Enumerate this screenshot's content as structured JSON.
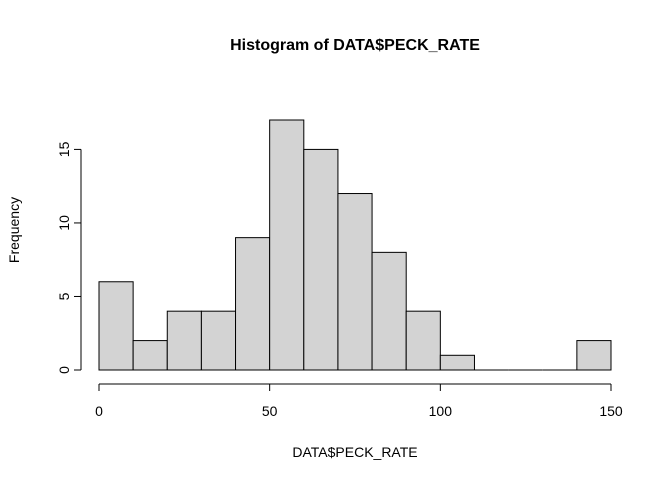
{
  "chart_data": {
    "type": "bar",
    "title": "Histogram of DATA$PECK_RATE",
    "xlabel": "DATA$PECK_RATE",
    "ylabel": "Frequency",
    "bins": [
      {
        "start": 0,
        "end": 10,
        "count": 6
      },
      {
        "start": 10,
        "end": 20,
        "count": 2
      },
      {
        "start": 20,
        "end": 30,
        "count": 4
      },
      {
        "start": 30,
        "end": 40,
        "count": 4
      },
      {
        "start": 40,
        "end": 50,
        "count": 9
      },
      {
        "start": 50,
        "end": 60,
        "count": 17
      },
      {
        "start": 60,
        "end": 70,
        "count": 15
      },
      {
        "start": 70,
        "end": 80,
        "count": 12
      },
      {
        "start": 80,
        "end": 90,
        "count": 8
      },
      {
        "start": 90,
        "end": 100,
        "count": 4
      },
      {
        "start": 100,
        "end": 110,
        "count": 1
      },
      {
        "start": 110,
        "end": 120,
        "count": 0
      },
      {
        "start": 120,
        "end": 130,
        "count": 0
      },
      {
        "start": 130,
        "end": 140,
        "count": 0
      },
      {
        "start": 140,
        "end": 150,
        "count": 2
      }
    ],
    "xlim": [
      0,
      150
    ],
    "ylim": [
      0,
      17
    ],
    "xticks": [
      0,
      50,
      100,
      150
    ],
    "yticks": [
      0,
      5,
      10,
      15
    ],
    "grid": false,
    "colors": {
      "bar_fill": "#d3d3d3",
      "bar_stroke": "#000000"
    }
  }
}
